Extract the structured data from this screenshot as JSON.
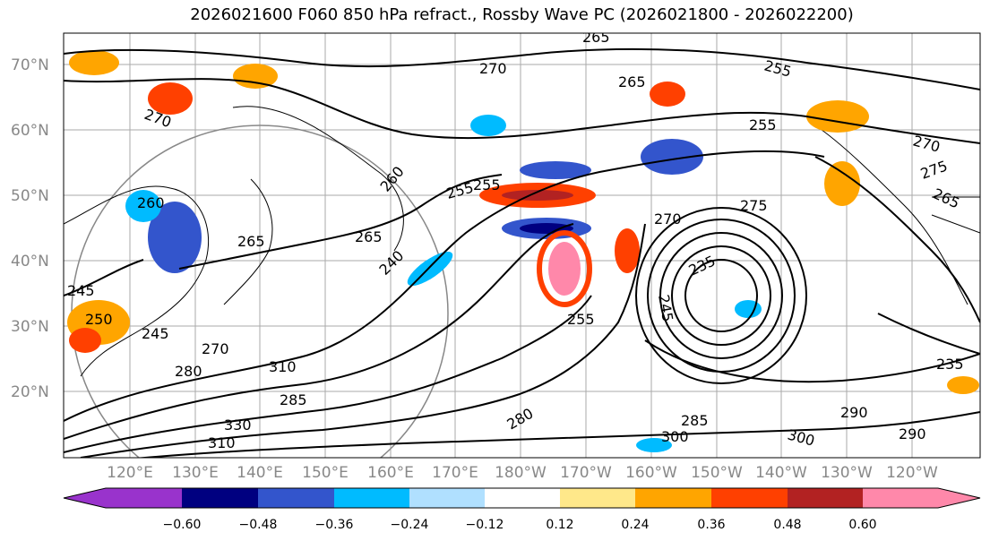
{
  "title": "2026021600 F060 850 hPa refract., Rossby Wave PC (2026021800 - 2026022200)",
  "lat_labels": [
    "70°N",
    "60°N",
    "50°N",
    "40°N",
    "30°N",
    "20°N"
  ],
  "lon_labels": [
    "120°E",
    "130°E",
    "140°E",
    "150°E",
    "160°E",
    "170°E",
    "180°W",
    "170°W",
    "160°W",
    "150°W",
    "140°W",
    "130°W",
    "120°W"
  ],
  "contour_labels": [
    "265",
    "270",
    "255",
    "265",
    "270",
    "260",
    "265",
    "255",
    "255",
    "260",
    "275",
    "275",
    "265",
    "270",
    "265",
    "255",
    "270",
    "245",
    "235",
    "245",
    "250",
    "245",
    "270",
    "280",
    "310",
    "240",
    "255",
    "290",
    "300",
    "285",
    "300",
    "290",
    "280",
    "235",
    "285",
    "310",
    "330"
  ],
  "colorbar": {
    "ticks": [
      "−0.60",
      "−0.48",
      "−0.36",
      "−0.24",
      "−0.12",
      "0.12",
      "0.24",
      "0.36",
      "0.48",
      "0.60"
    ],
    "colors": [
      "#9933cc",
      "#000080",
      "#3355cc",
      "#00bbff",
      "#b0e0ff",
      "#ffffff",
      "#ffe88a",
      "#ffa500",
      "#ff4000",
      "#b22222",
      "#ff88aa"
    ]
  }
}
